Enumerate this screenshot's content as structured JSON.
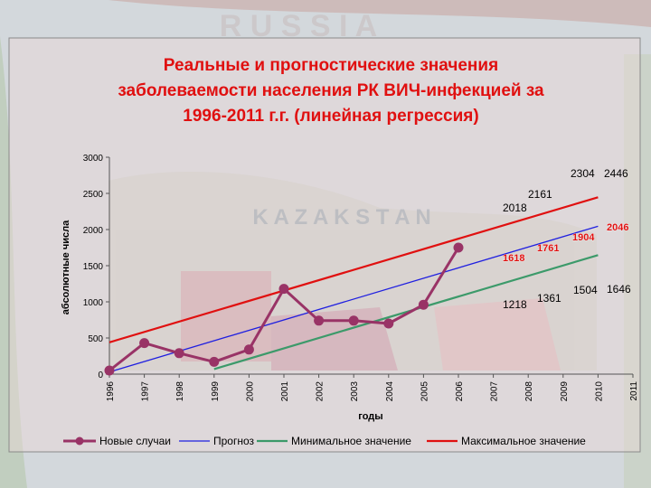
{
  "chart_data": {
    "type": "line",
    "title": [
      "Реальные и прогностические значения",
      "заболеваемости населения РК ВИЧ-инфекцией за",
      "1996-2011 г.г. (линейная регрессия)"
    ],
    "background_text": [
      "R U S S I A",
      "K A Z A K S T A N"
    ],
    "xlabel": "годы",
    "ylabel": "абсолютные числа",
    "x_categories": [
      "1996",
      "1997",
      "1998",
      "1999",
      "2000",
      "2001",
      "2002",
      "2003",
      "2004",
      "2005",
      "2006",
      "2007",
      "2008",
      "2009",
      "2010",
      "2011"
    ],
    "y_ticks": [
      "0",
      "500",
      "1000",
      "1500",
      "2000",
      "2500",
      "3000"
    ],
    "ylim": [
      0,
      3000
    ],
    "grid": false,
    "legend_position": "bottom",
    "series": [
      {
        "name": "Новые случаи",
        "color": "#993366",
        "points": [
          [
            1996,
            50
          ],
          [
            1997,
            430
          ],
          [
            1998,
            290
          ],
          [
            1999,
            170
          ],
          [
            2000,
            340
          ],
          [
            2001,
            1180
          ],
          [
            2002,
            740
          ],
          [
            2003,
            740
          ],
          [
            2004,
            700
          ],
          [
            2005,
            960
          ],
          [
            2006,
            1750
          ]
        ]
      },
      {
        "name": "Прогноз",
        "color": "#1f1fe0",
        "points": [
          [
            1996,
            30
          ],
          [
            2010,
            2046
          ]
        ]
      },
      {
        "name": "Минимальное значение",
        "color": "#3c9a6a",
        "points": [
          [
            1999,
            70
          ],
          [
            2010,
            1646
          ]
        ]
      },
      {
        "name": "Максимальное значение",
        "color": "#e01010",
        "points": [
          [
            1996,
            440
          ],
          [
            2010,
            2446
          ]
        ]
      }
    ],
    "annotations": [
      {
        "text": "2446",
        "color": "#000000",
        "bold": false
      },
      {
        "text": "2304",
        "color": "#000000",
        "bold": false
      },
      {
        "text": "2161",
        "color": "#000000",
        "bold": false
      },
      {
        "text": "2018",
        "color": "#000000",
        "bold": false
      },
      {
        "text": "2046",
        "color": "#e01010",
        "bold": true
      },
      {
        "text": "1904",
        "color": "#e01010",
        "bold": true
      },
      {
        "text": "1761",
        "color": "#e01010",
        "bold": true
      },
      {
        "text": "1618",
        "color": "#e01010",
        "bold": true
      },
      {
        "text": "1646",
        "color": "#000000",
        "bold": false
      },
      {
        "text": "1504",
        "color": "#000000",
        "bold": false
      },
      {
        "text": "1361",
        "color": "#000000",
        "bold": false
      },
      {
        "text": "1218",
        "color": "#000000",
        "bold": false
      }
    ]
  }
}
